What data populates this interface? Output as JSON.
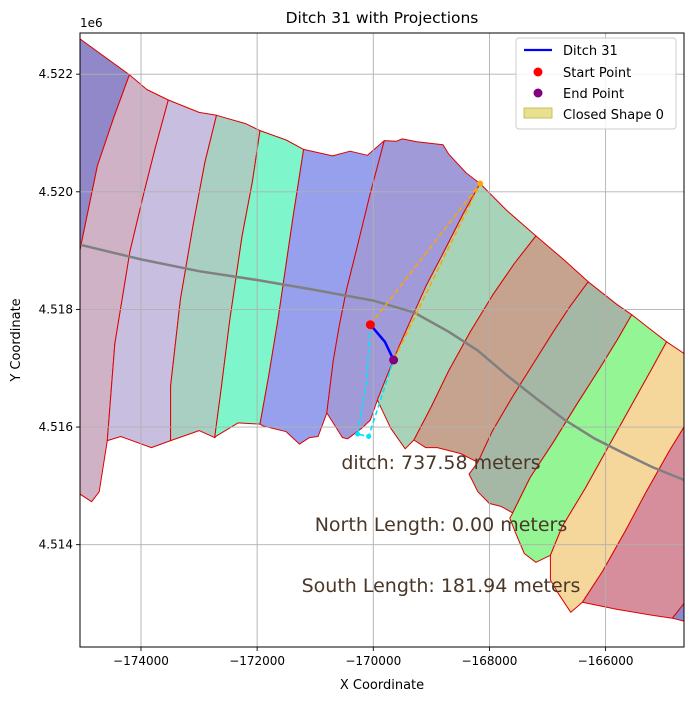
{
  "chart_data": {
    "type": "line",
    "title": "Ditch 31 with Projections",
    "xlabel": "X Coordinate",
    "ylabel": "Y Coordinate",
    "y_offset_label": "1e6",
    "xlim": [
      -175050,
      -164650
    ],
    "ylim": [
      4512260,
      4522700
    ],
    "x_ticks": [
      -174000,
      -172000,
      -170000,
      -168000,
      -166000
    ],
    "x_tick_labels": [
      "−174000",
      "−172000",
      "−170000",
      "−168000",
      "−166000"
    ],
    "y_ticks": [
      4514000,
      4516000,
      4518000,
      4520000,
      4522000
    ],
    "y_tick_labels": [
      "4.514",
      "4.516",
      "4.518",
      "4.520",
      "4.522"
    ],
    "grid": true,
    "legend_position": "upper right",
    "legend": [
      {
        "label": "Ditch 31",
        "kind": "line",
        "color": "#0000ff"
      },
      {
        "label": "Start Point",
        "kind": "point",
        "color": "#ff0000"
      },
      {
        "label": "End Point",
        "kind": "point",
        "color": "#800080"
      },
      {
        "label": "Closed Shape 0",
        "kind": "patch",
        "color": "#e6e08f"
      }
    ],
    "annotations": [
      "ditch: 737.58 meters",
      "North Length: 0.00 meters",
      "South Length: 181.94 meters"
    ],
    "parcels": [
      {
        "color": "#9088c8",
        "points": [
          [
            -175050,
            4522600
          ],
          [
            -174200,
            4521990
          ],
          [
            -174470,
            4521260
          ],
          [
            -174750,
            4520440
          ],
          [
            -175050,
            4519010
          ]
        ]
      },
      {
        "color": "#d0b2c6",
        "points": [
          [
            -174200,
            4521990
          ],
          [
            -173900,
            4521740
          ],
          [
            -173530,
            4521560
          ],
          [
            -173760,
            4520720
          ],
          [
            -173950,
            4519980
          ],
          [
            -174190,
            4518980
          ],
          [
            -174450,
            4517410
          ],
          [
            -174580,
            4515770
          ],
          [
            -174720,
            4514900
          ],
          [
            -174850,
            4514730
          ],
          [
            -175050,
            4514860
          ],
          [
            -175050,
            4519010
          ],
          [
            -174750,
            4520440
          ],
          [
            -174470,
            4521260
          ]
        ]
      },
      {
        "color": "#c8bfe0",
        "points": [
          [
            -173530,
            4521560
          ],
          [
            -173000,
            4521350
          ],
          [
            -172700,
            4521300
          ],
          [
            -172900,
            4520500
          ],
          [
            -173100,
            4519450
          ],
          [
            -173320,
            4518180
          ],
          [
            -173490,
            4516700
          ],
          [
            -173490,
            4515770
          ],
          [
            -173820,
            4515650
          ],
          [
            -174350,
            4515840
          ],
          [
            -174580,
            4515770
          ],
          [
            -174450,
            4517410
          ],
          [
            -174190,
            4518980
          ],
          [
            -173950,
            4519980
          ],
          [
            -173760,
            4520720
          ]
        ]
      },
      {
        "color": "#a9cfc2",
        "points": [
          [
            -172700,
            4521300
          ],
          [
            -172200,
            4521160
          ],
          [
            -171950,
            4521040
          ],
          [
            -172080,
            4520180
          ],
          [
            -172260,
            4519240
          ],
          [
            -172470,
            4517820
          ],
          [
            -172620,
            4516640
          ],
          [
            -172730,
            4515820
          ],
          [
            -173000,
            4515940
          ],
          [
            -173490,
            4515770
          ],
          [
            -173490,
            4516700
          ],
          [
            -173320,
            4518180
          ],
          [
            -173100,
            4519450
          ],
          [
            -172900,
            4520500
          ]
        ]
      },
      {
        "color": "#7ef5cb",
        "points": [
          [
            -171950,
            4521040
          ],
          [
            -171500,
            4520880
          ],
          [
            -171200,
            4520720
          ],
          [
            -171390,
            4519520
          ],
          [
            -171520,
            4518640
          ],
          [
            -171640,
            4517830
          ],
          [
            -171800,
            4516880
          ],
          [
            -171950,
            4516050
          ],
          [
            -172330,
            4516070
          ],
          [
            -172700,
            4515850
          ],
          [
            -172730,
            4515820
          ],
          [
            -172620,
            4516640
          ],
          [
            -172470,
            4517820
          ],
          [
            -172260,
            4519240
          ],
          [
            -172080,
            4520180
          ]
        ]
      },
      {
        "color": "#97a0ec",
        "points": [
          [
            -171200,
            4520720
          ],
          [
            -170700,
            4520610
          ],
          [
            -170400,
            4520690
          ],
          [
            -170100,
            4520620
          ],
          [
            -169810,
            4520870
          ],
          [
            -170050,
            4519980
          ],
          [
            -170280,
            4519050
          ],
          [
            -170460,
            4518340
          ],
          [
            -170580,
            4517750
          ],
          [
            -170690,
            4517120
          ],
          [
            -170800,
            4516240
          ],
          [
            -170950,
            4515840
          ],
          [
            -171100,
            4515820
          ],
          [
            -171270,
            4515710
          ],
          [
            -171500,
            4515920
          ],
          [
            -171900,
            4516020
          ],
          [
            -171950,
            4516050
          ],
          [
            -171800,
            4516880
          ],
          [
            -171640,
            4517830
          ],
          [
            -171520,
            4518640
          ],
          [
            -171390,
            4519520
          ]
        ]
      },
      {
        "color": "#a09bd8",
        "points": [
          [
            -169810,
            4520870
          ],
          [
            -169600,
            4520860
          ],
          [
            -169500,
            4520900
          ],
          [
            -169250,
            4520850
          ],
          [
            -168800,
            4520800
          ],
          [
            -168700,
            4520640
          ],
          [
            -168400,
            4520320
          ],
          [
            -168160,
            4520140
          ],
          [
            -168440,
            4519650
          ],
          [
            -168800,
            4518950
          ],
          [
            -169090,
            4518400
          ],
          [
            -169340,
            4517850
          ],
          [
            -169560,
            4517360
          ],
          [
            -169760,
            4516880
          ],
          [
            -169930,
            4516460
          ],
          [
            -170050,
            4516120
          ],
          [
            -170200,
            4515980
          ],
          [
            -170440,
            4515800
          ],
          [
            -170530,
            4515820
          ],
          [
            -170800,
            4516240
          ],
          [
            -170690,
            4517120
          ],
          [
            -170580,
            4517750
          ],
          [
            -170460,
            4518340
          ],
          [
            -170280,
            4519050
          ],
          [
            -170050,
            4519980
          ]
        ]
      },
      {
        "color": "#a7d4b8",
        "points": [
          [
            -168160,
            4520140
          ],
          [
            -167700,
            4519680
          ],
          [
            -167200,
            4519250
          ],
          [
            -167570,
            4518780
          ],
          [
            -167940,
            4518250
          ],
          [
            -168330,
            4517620
          ],
          [
            -168700,
            4516960
          ],
          [
            -169000,
            4516350
          ],
          [
            -169300,
            4515780
          ],
          [
            -169450,
            4515630
          ],
          [
            -169700,
            4515980
          ],
          [
            -169930,
            4516460
          ],
          [
            -169760,
            4516880
          ],
          [
            -169560,
            4517360
          ],
          [
            -169340,
            4517850
          ],
          [
            -169090,
            4518400
          ],
          [
            -168800,
            4518950
          ],
          [
            -168440,
            4519650
          ]
        ]
      },
      {
        "color": "#c5a38e",
        "points": [
          [
            -167200,
            4519250
          ],
          [
            -166700,
            4518830
          ],
          [
            -166300,
            4518470
          ],
          [
            -166620,
            4518040
          ],
          [
            -166900,
            4517620
          ],
          [
            -167250,
            4517070
          ],
          [
            -167600,
            4516520
          ],
          [
            -167950,
            4515930
          ],
          [
            -168200,
            4515400
          ],
          [
            -168500,
            4515550
          ],
          [
            -168900,
            4515650
          ],
          [
            -169100,
            4515650
          ],
          [
            -169300,
            4515780
          ],
          [
            -169000,
            4516350
          ],
          [
            -168700,
            4516960
          ],
          [
            -168330,
            4517620
          ],
          [
            -167940,
            4518250
          ],
          [
            -167570,
            4518780
          ]
        ]
      },
      {
        "color": "#a5b7a5",
        "points": [
          [
            -166300,
            4518470
          ],
          [
            -165800,
            4518080
          ],
          [
            -165550,
            4517910
          ],
          [
            -165800,
            4517480
          ],
          [
            -166100,
            4517000
          ],
          [
            -166500,
            4516380
          ],
          [
            -166900,
            4515740
          ],
          [
            -167300,
            4515140
          ],
          [
            -167600,
            4514540
          ],
          [
            -167800,
            4514650
          ],
          [
            -168000,
            4514700
          ],
          [
            -168200,
            4514900
          ],
          [
            -168350,
            4515200
          ],
          [
            -168200,
            4515400
          ],
          [
            -167950,
            4515930
          ],
          [
            -167600,
            4516520
          ],
          [
            -167250,
            4517070
          ],
          [
            -166900,
            4517620
          ],
          [
            -166620,
            4518040
          ]
        ]
      },
      {
        "color": "#93f593",
        "points": [
          [
            -165550,
            4517910
          ],
          [
            -165200,
            4517640
          ],
          [
            -164950,
            4517450
          ],
          [
            -165200,
            4517000
          ],
          [
            -165650,
            4516200
          ],
          [
            -166000,
            4515580
          ],
          [
            -166350,
            4514960
          ],
          [
            -166750,
            4514300
          ],
          [
            -166950,
            4513820
          ],
          [
            -167200,
            4513700
          ],
          [
            -167400,
            4513850
          ],
          [
            -167550,
            4514200
          ],
          [
            -167650,
            4514450
          ],
          [
            -167600,
            4514540
          ],
          [
            -167300,
            4515140
          ],
          [
            -166900,
            4515740
          ],
          [
            -166500,
            4516380
          ],
          [
            -166100,
            4517000
          ],
          [
            -165800,
            4517480
          ]
        ]
      },
      {
        "color": "#f5d79b",
        "points": [
          [
            -164950,
            4517450
          ],
          [
            -164650,
            4517250
          ],
          [
            -164650,
            4516000
          ],
          [
            -164900,
            4515600
          ],
          [
            -165300,
            4514900
          ],
          [
            -165650,
            4514250
          ],
          [
            -166050,
            4513550
          ],
          [
            -166400,
            4513020
          ],
          [
            -166600,
            4512850
          ],
          [
            -166800,
            4513150
          ],
          [
            -166950,
            4513400
          ],
          [
            -166950,
            4513820
          ],
          [
            -166750,
            4514300
          ],
          [
            -166350,
            4514960
          ],
          [
            -166000,
            4515580
          ],
          [
            -165650,
            4516200
          ],
          [
            -165200,
            4517000
          ]
        ]
      },
      {
        "color": "#d68e9c",
        "points": [
          [
            -164650,
            4516000
          ],
          [
            -164650,
            4513000
          ],
          [
            -164850,
            4512750
          ],
          [
            -165200,
            4512800
          ],
          [
            -165800,
            4512900
          ],
          [
            -166400,
            4513020
          ],
          [
            -166050,
            4513550
          ],
          [
            -165650,
            4514250
          ],
          [
            -165300,
            4514900
          ],
          [
            -164900,
            4515600
          ]
        ]
      },
      {
        "color": "#9088c8",
        "points": [
          [
            -164650,
            4513000
          ],
          [
            -164650,
            4512700
          ],
          [
            -164850,
            4512750
          ]
        ]
      }
    ],
    "centerline": [
      [
        -175050,
        4519100
      ],
      [
        -174000,
        4518850
      ],
      [
        -173000,
        4518650
      ],
      [
        -172000,
        4518500
      ],
      [
        -171000,
        4518330
      ],
      [
        -170000,
        4518150
      ],
      [
        -169300,
        4517950
      ],
      [
        -168700,
        4517620
      ],
      [
        -168200,
        4517300
      ],
      [
        -167700,
        4516880
      ],
      [
        -167200,
        4516490
      ],
      [
        -166700,
        4516120
      ],
      [
        -166200,
        4515810
      ],
      [
        -165700,
        4515560
      ],
      [
        -165200,
        4515320
      ],
      [
        -164650,
        4515100
      ]
    ],
    "ditch": [
      [
        -170050,
        4517740
      ],
      [
        -169800,
        4517450
      ],
      [
        -169650,
        4517140
      ]
    ],
    "start_point": [
      -170050,
      4517740
    ],
    "end_point": [
      -169650,
      4517140
    ],
    "north_projection": [
      [
        -170050,
        4517740
      ],
      [
        -168160,
        4520140
      ],
      [
        -169650,
        4517140
      ]
    ],
    "south_projection": [
      [
        -170050,
        4517740
      ],
      [
        -170120,
        4516740
      ],
      [
        -170270,
        4515880
      ],
      [
        -170080,
        4515840
      ],
      [
        -169650,
        4517140
      ]
    ]
  }
}
